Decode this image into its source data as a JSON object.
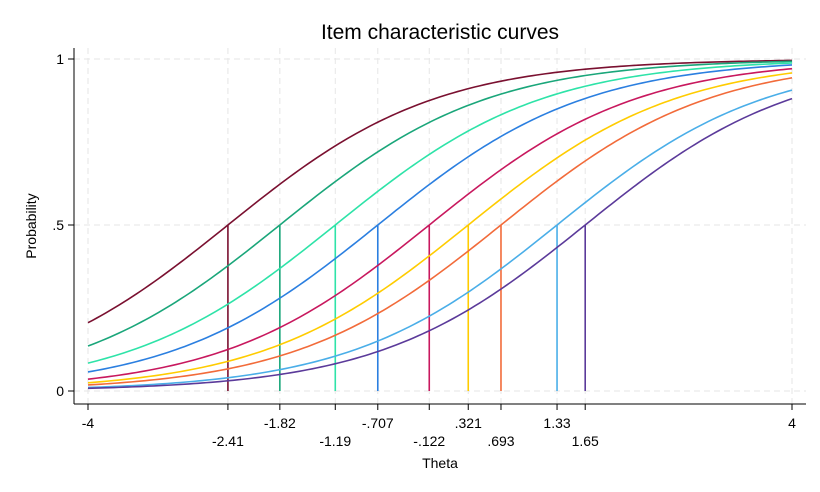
{
  "chart_data": {
    "type": "line",
    "title": "Item characteristic curves",
    "xlabel": "Theta",
    "ylabel": "Probability",
    "xlim": [
      -4,
      4
    ],
    "ylim": [
      0,
      1
    ],
    "grid": true,
    "y_ticks": [
      {
        "value": 0,
        "label": "0"
      },
      {
        "value": 0.5,
        "label": ".5"
      },
      {
        "value": 1,
        "label": "1"
      }
    ],
    "x_ticks_top_row": [
      {
        "value": -4,
        "label": "-4"
      },
      {
        "value": -1.82,
        "label": "-1.82"
      },
      {
        "value": -0.707,
        "label": "-.707"
      },
      {
        "value": 0.321,
        "label": ".321"
      },
      {
        "value": 1.33,
        "label": "1.33"
      },
      {
        "value": 4,
        "label": "4"
      }
    ],
    "x_ticks_bottom_row": [
      {
        "value": -2.41,
        "label": "-2.41"
      },
      {
        "value": -1.19,
        "label": "-1.19"
      },
      {
        "value": -0.122,
        "label": "-.122"
      },
      {
        "value": 0.693,
        "label": ".693"
      },
      {
        "value": 1.65,
        "label": "1.65"
      }
    ],
    "discrimination": 0.85,
    "series": [
      {
        "difficulty": -2.41,
        "color": "#7a1030"
      },
      {
        "difficulty": -1.82,
        "color": "#1aa67a"
      },
      {
        "difficulty": -1.19,
        "color": "#2ee3a8"
      },
      {
        "difficulty": -0.707,
        "color": "#2b7fe0"
      },
      {
        "difficulty": -0.122,
        "color": "#c8185e"
      },
      {
        "difficulty": 0.321,
        "color": "#ffcc00"
      },
      {
        "difficulty": 0.693,
        "color": "#f26b3a"
      },
      {
        "difficulty": 1.33,
        "color": "#4aaee8"
      },
      {
        "difficulty": 1.65,
        "color": "#5b3a9a"
      }
    ]
  }
}
